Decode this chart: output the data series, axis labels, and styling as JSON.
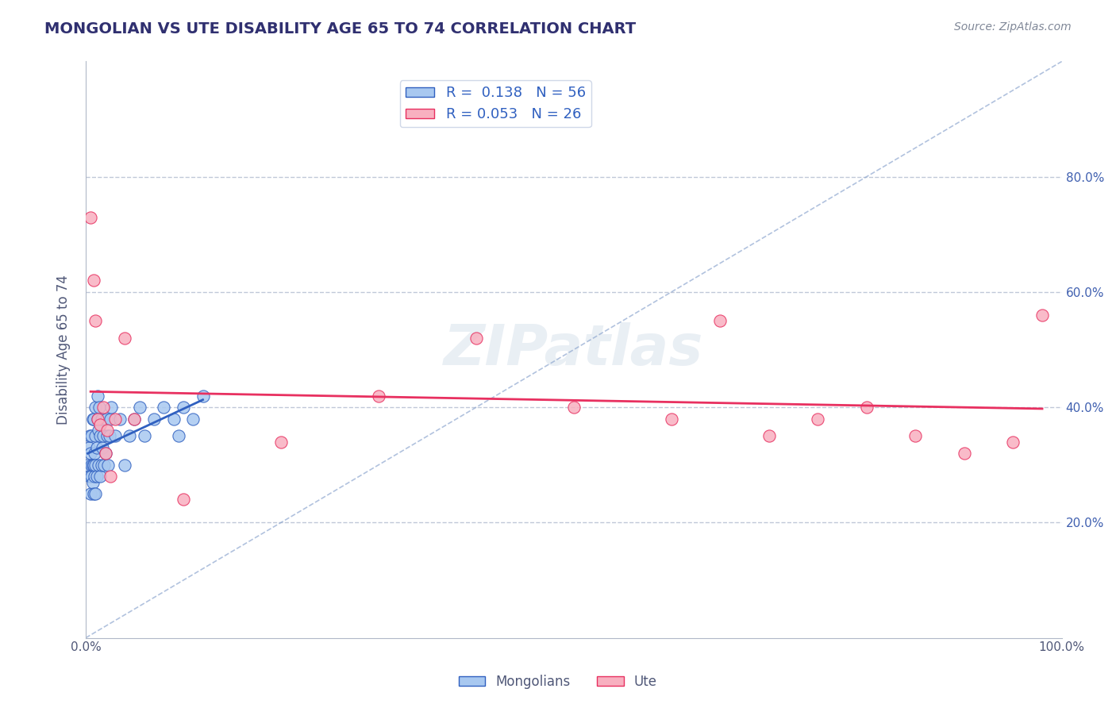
{
  "title": "MONGOLIAN VS UTE DISABILITY AGE 65 TO 74 CORRELATION CHART",
  "source": "Source: ZipAtlas.com",
  "ylabel": "Disability Age 65 to 74",
  "x_min": 0.0,
  "x_max": 1.0,
  "y_min": 0.0,
  "y_max": 1.0,
  "y_ticks": [
    0.2,
    0.4,
    0.6,
    0.8
  ],
  "y_tick_labels": [
    "20.0%",
    "40.0%",
    "60.0%",
    "80.0%"
  ],
  "legend_mongolian": "R =  0.138   N = 56",
  "legend_ute": "R = 0.053   N = 26",
  "mongolian_color": "#a8c8f0",
  "mongolian_line_color": "#3060c0",
  "ute_color": "#f8b0c0",
  "ute_line_color": "#e83060",
  "title_color": "#303070",
  "grid_color": "#c0c8d8",
  "background_color": "#ffffff",
  "watermark_text": "ZIPatlas",
  "mongolian_x": [
    0.002,
    0.003,
    0.004,
    0.004,
    0.005,
    0.005,
    0.006,
    0.006,
    0.006,
    0.007,
    0.007,
    0.007,
    0.008,
    0.008,
    0.008,
    0.009,
    0.009,
    0.01,
    0.01,
    0.01,
    0.01,
    0.011,
    0.011,
    0.012,
    0.012,
    0.013,
    0.013,
    0.014,
    0.015,
    0.015,
    0.016,
    0.016,
    0.017,
    0.018,
    0.019,
    0.02,
    0.021,
    0.022,
    0.023,
    0.024,
    0.025,
    0.026,
    0.03,
    0.035,
    0.04,
    0.045,
    0.05,
    0.055,
    0.06,
    0.07,
    0.08,
    0.09,
    0.095,
    0.1,
    0.11,
    0.12
  ],
  "mongolian_y": [
    0.3,
    0.33,
    0.28,
    0.35,
    0.25,
    0.32,
    0.28,
    0.3,
    0.35,
    0.27,
    0.3,
    0.38,
    0.25,
    0.3,
    0.38,
    0.28,
    0.32,
    0.25,
    0.3,
    0.35,
    0.4,
    0.28,
    0.33,
    0.38,
    0.42,
    0.3,
    0.36,
    0.4,
    0.28,
    0.35,
    0.3,
    0.38,
    0.33,
    0.35,
    0.3,
    0.32,
    0.38,
    0.35,
    0.3,
    0.35,
    0.38,
    0.4,
    0.35,
    0.38,
    0.3,
    0.35,
    0.38,
    0.4,
    0.35,
    0.38,
    0.4,
    0.38,
    0.35,
    0.4,
    0.38,
    0.42
  ],
  "ute_x": [
    0.005,
    0.008,
    0.01,
    0.012,
    0.015,
    0.018,
    0.02,
    0.022,
    0.025,
    0.03,
    0.04,
    0.05,
    0.1,
    0.2,
    0.3,
    0.4,
    0.5,
    0.6,
    0.65,
    0.7,
    0.75,
    0.8,
    0.85,
    0.9,
    0.95,
    0.98
  ],
  "ute_y": [
    0.73,
    0.62,
    0.55,
    0.38,
    0.37,
    0.4,
    0.32,
    0.36,
    0.28,
    0.38,
    0.52,
    0.38,
    0.24,
    0.34,
    0.42,
    0.52,
    0.4,
    0.38,
    0.55,
    0.35,
    0.38,
    0.4,
    0.35,
    0.32,
    0.34,
    0.56
  ]
}
